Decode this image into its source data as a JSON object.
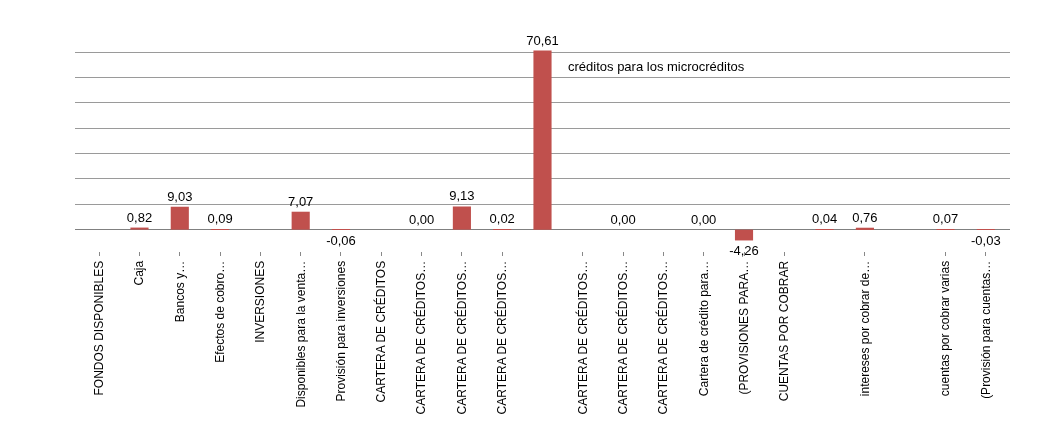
{
  "chart_data": {
    "type": "bar",
    "categories": [
      "FONDOS DISPONIBLES",
      "Caja",
      "Bancos y…",
      "Efectos de cobro…",
      "INVERSIONES",
      "Disponibles para la venta…",
      "Provisión para inversiones",
      "CARTERA DE CRÉDITOS",
      "CARTERA DE CRÉDITOS…",
      "CARTERA DE CRÉDITOS…",
      "CARTERA DE CRÉDITOS…",
      null,
      "CARTERA DE CRÉDITOS…",
      "CARTERA DE CRÉDITOS…",
      "CARTERA DE CRÉDITOS…",
      "Cartera de crédito para…",
      "(PROVISIONES PARA…",
      "CUENTAS POR COBRAR",
      null,
      "intereses por cobrar de…",
      null,
      "cuentas por cobrar varias",
      "(Provisión para cuentas…"
    ],
    "values": [
      null,
      0.82,
      9.03,
      0.09,
      null,
      7.07,
      -0.06,
      null,
      0.0,
      9.13,
      0.02,
      70.61,
      0.0,
      0.0,
      0.0,
      0.0,
      -4.26,
      null,
      0.04,
      0.76,
      0.0,
      0.07,
      -0.03
    ],
    "value_labels": [
      null,
      "0,82",
      "9,03",
      "0,09",
      null,
      "7,07",
      "-0,06",
      null,
      "0,00",
      "9,13",
      "0,02",
      "70,61",
      null,
      "0,00",
      null,
      "0,00",
      "-4,26",
      null,
      "0,04",
      "0,76",
      null,
      "0,07",
      "-0,03"
    ],
    "color": "#c0504d",
    "grid": "y",
    "tick_labels": "x",
    "annotations": [
      "créditos para los microcréditos"
    ]
  }
}
